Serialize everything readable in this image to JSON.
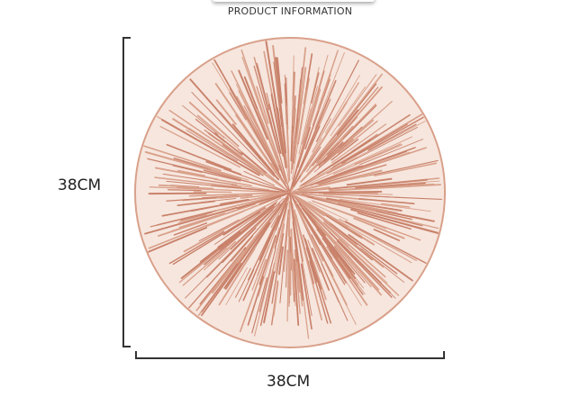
{
  "header": {
    "title": "PRODUCT INFORMATION"
  },
  "dimensions": {
    "height_label": "38CM",
    "width_label": "38CM"
  },
  "product": {
    "icon": "round-placemat-image",
    "color": "#d9a08a"
  }
}
